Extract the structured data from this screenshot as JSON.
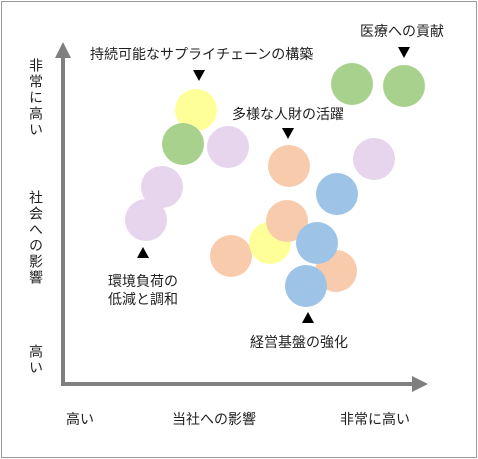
{
  "y_axis": {
    "high_label": "非常に高い",
    "title": "社会への影響",
    "low_label": "高い"
  },
  "x_axis": {
    "low_label": "高い",
    "title": "当社への影響",
    "high_label": "非常に高い"
  },
  "annotations": {
    "supply_chain": "持続可能なサプライチェーンの構築",
    "diversity": "多様な人財の活躍",
    "medical": "医療への貢献",
    "environment": [
      "環境負荷の",
      "低減と調和"
    ],
    "management": "経営基盤の強化"
  }
}
